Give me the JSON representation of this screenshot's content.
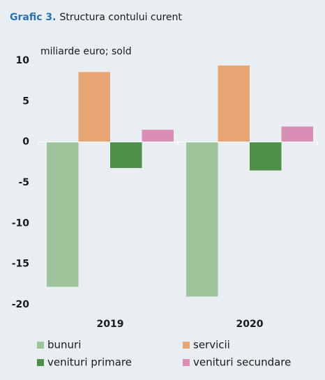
{
  "chart_data": {
    "type": "bar",
    "title_label": "Grafic 3.",
    "title": "Structura contului curent",
    "ylabel": "miliarde euro; sold",
    "categories": [
      "2019",
      "2020"
    ],
    "series": [
      {
        "name": "bunuri",
        "color": "#9dc49a",
        "values": [
          -17.8,
          -19
        ]
      },
      {
        "name": "servicii",
        "color": "#e8a574",
        "values": [
          8.6,
          9.4
        ]
      },
      {
        "name": "venituri primare",
        "color": "#4e8f4a",
        "values": [
          -3.2,
          -3.5
        ]
      },
      {
        "name": "venituri secundare",
        "color": "#d98fb5",
        "values": [
          1.5,
          1.9
        ]
      }
    ],
    "ylim": [
      -20,
      10
    ],
    "yticks": [
      -20,
      -15,
      -10,
      -5,
      0,
      5,
      10
    ],
    "grid": false,
    "legend": "bottom"
  }
}
